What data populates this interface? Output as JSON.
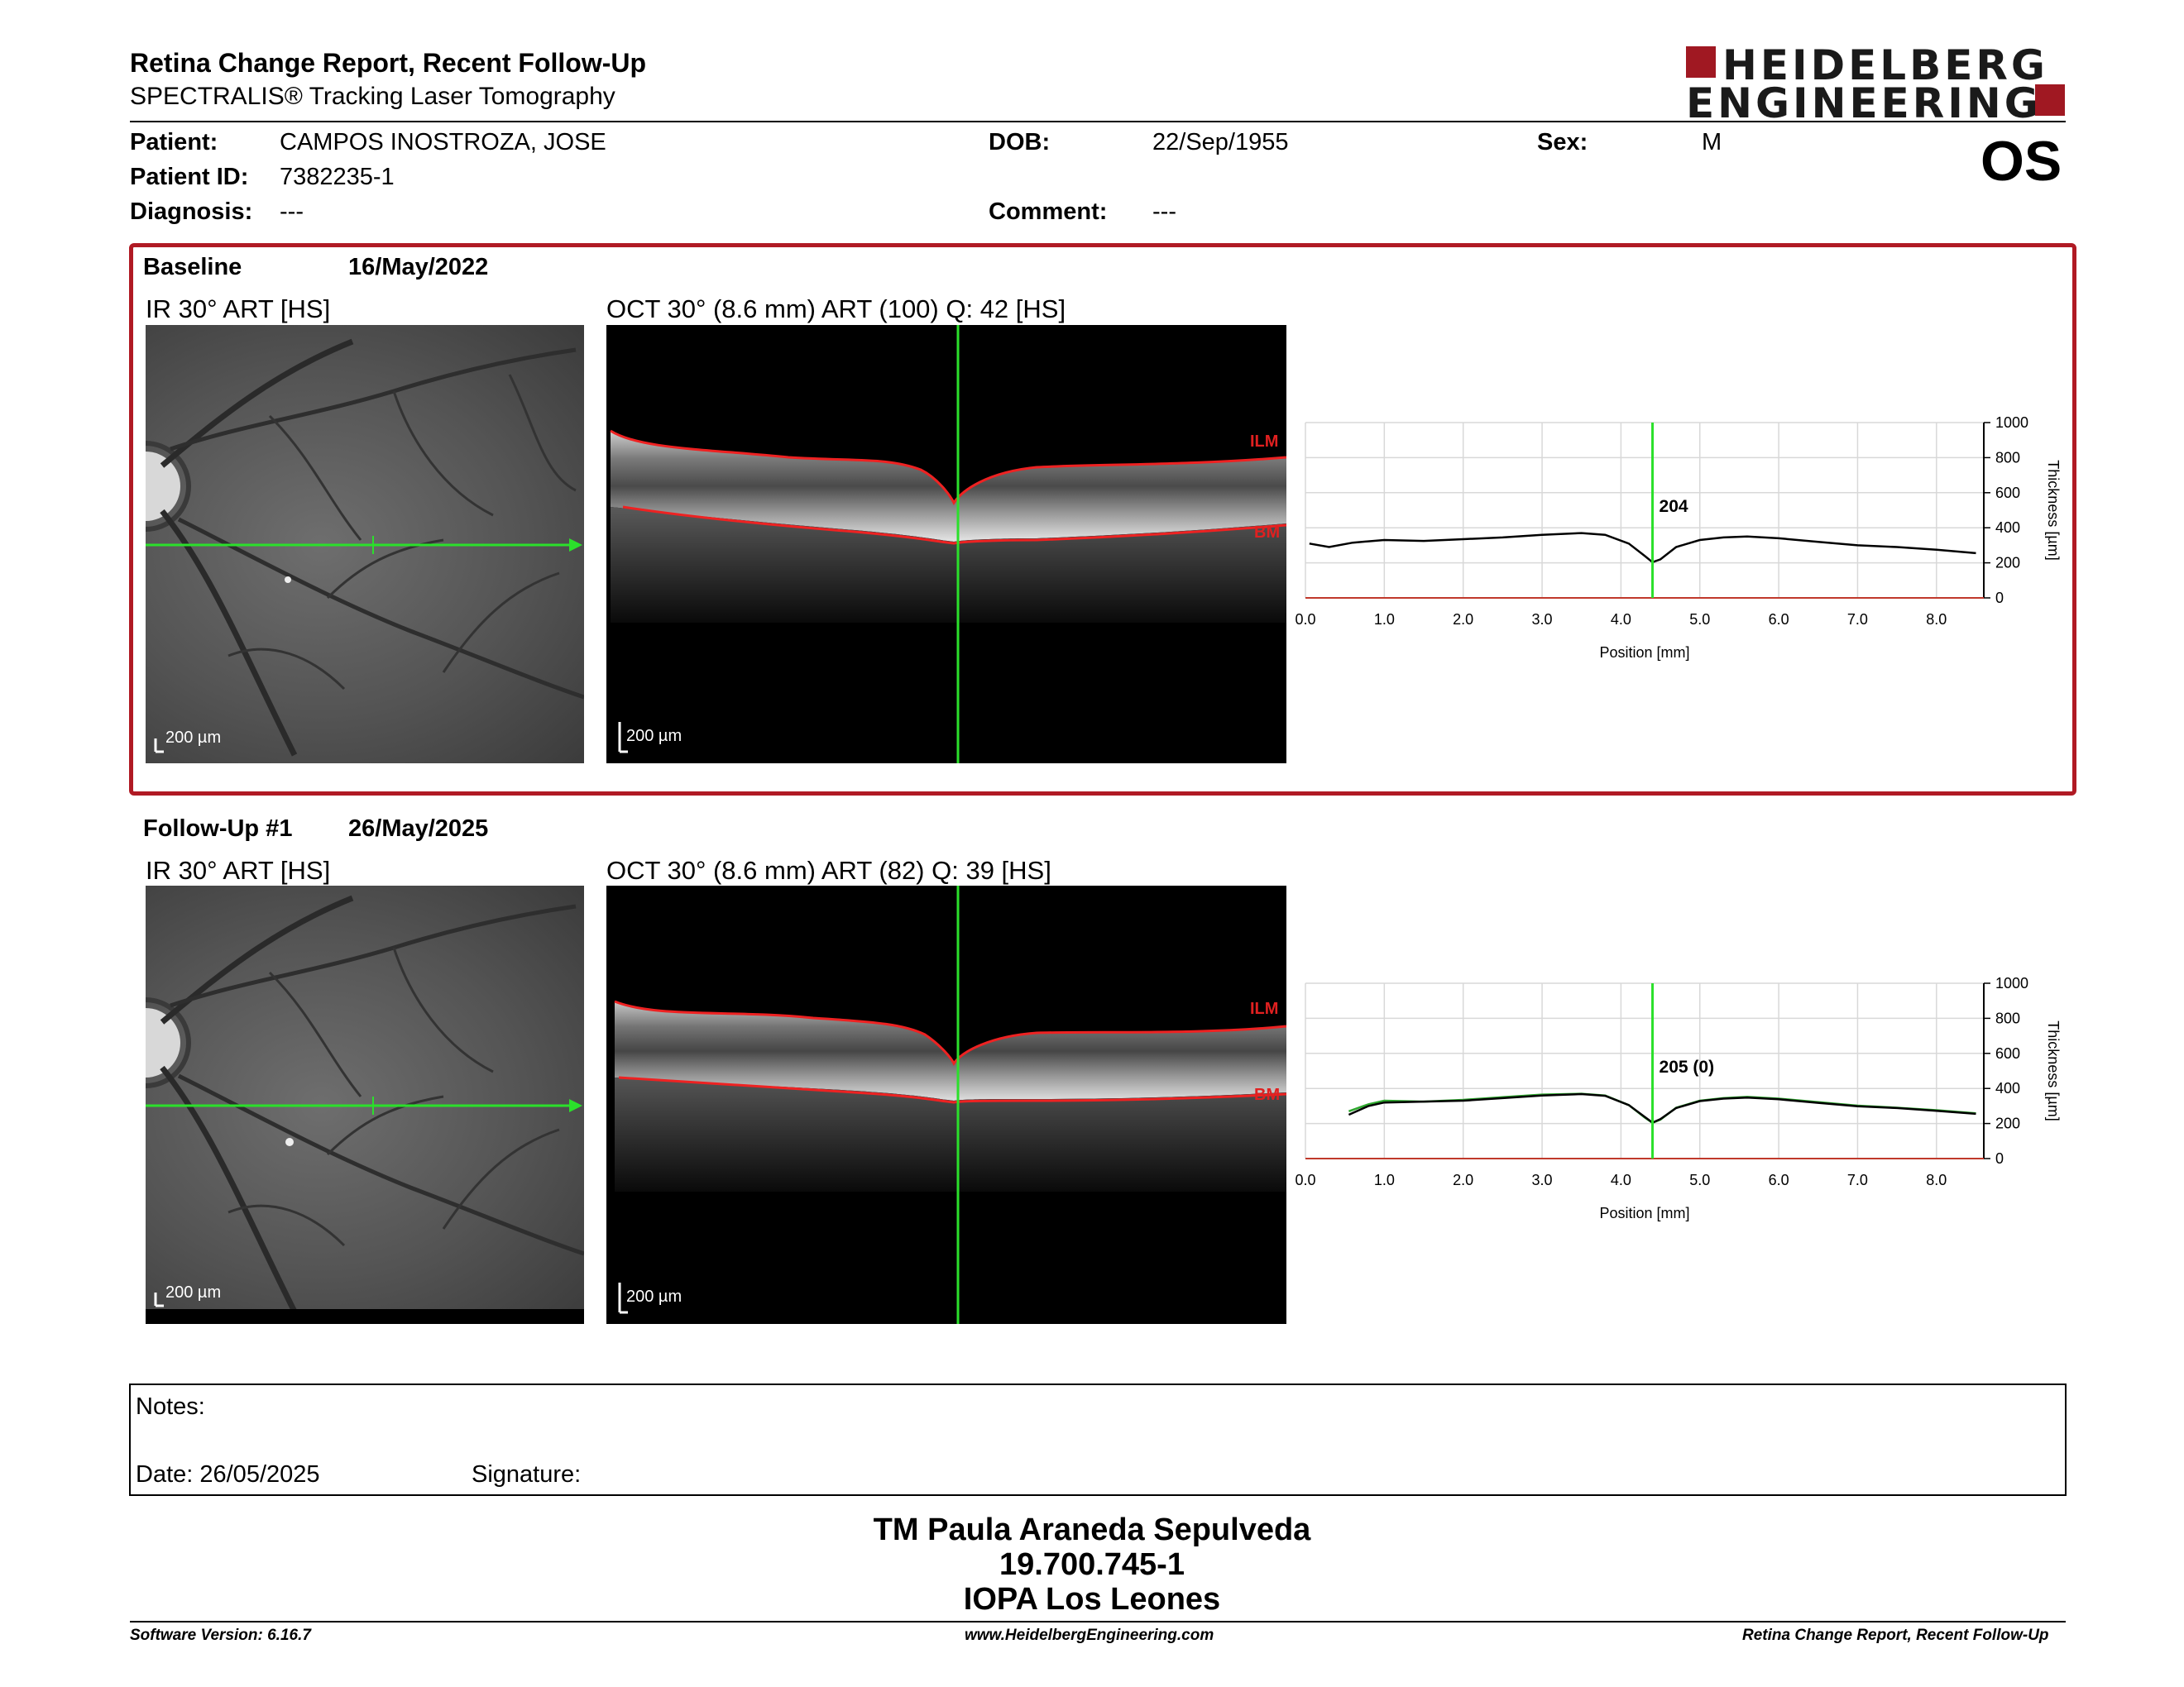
{
  "header": {
    "title": "Retina Change Report, Recent Follow-Up",
    "subtitle": "SPECTRALIS® Tracking Laser Tomography",
    "logo_line1": "HEIDELBERG",
    "logo_line2": "ENGINEERING",
    "eye": "OS"
  },
  "patient": {
    "name_label": "Patient:",
    "name": "CAMPOS INOSTROZA, JOSE",
    "id_label": "Patient ID:",
    "id": "7382235-1",
    "diagnosis_label": "Diagnosis:",
    "diagnosis": "---",
    "dob_label": "DOB:",
    "dob": "22/Sep/1955",
    "comment_label": "Comment:",
    "comment": "---",
    "sex_label": "Sex:",
    "sex": "M"
  },
  "baseline": {
    "label": "Baseline",
    "date": "16/May/2022",
    "ir_title": "IR 30° ART [HS]",
    "oct_title": "OCT 30° (8.6 mm) ART (100) Q: 42 [HS]",
    "ilm_label": "ILM",
    "bm_label": "BM",
    "scale": "200 µm",
    "value_label": "204"
  },
  "followup": {
    "label": "Follow-Up #1",
    "date": "26/May/2025",
    "ir_title": "IR 30° ART [HS]",
    "oct_title": "OCT 30° (8.6 mm) ART (82) Q: 39 [HS]",
    "ilm_label": "ILM",
    "bm_label": "BM",
    "scale": "200 µm",
    "value_label": "205 (0)"
  },
  "chart_data": [
    {
      "type": "line",
      "xlabel": "Position [mm]",
      "ylabel": "Thickness [µm]",
      "xlim": [
        0,
        8.6
      ],
      "ylim": [
        0,
        1000
      ],
      "x_ticks": [
        "0.0",
        "1.0",
        "2.0",
        "3.0",
        "4.0",
        "5.0",
        "6.0",
        "7.0",
        "8.0"
      ],
      "y_ticks": [
        "0",
        "200",
        "400",
        "600",
        "800",
        "1000"
      ],
      "marker_x": 4.4,
      "marker_label": "204",
      "series": [
        {
          "color": "#000000",
          "x": [
            0.05,
            0.3,
            0.6,
            1.0,
            1.5,
            2.0,
            2.5,
            3.0,
            3.5,
            3.8,
            4.1,
            4.3,
            4.4,
            4.5,
            4.7,
            5.0,
            5.3,
            5.6,
            6.0,
            6.5,
            7.0,
            7.5,
            8.0,
            8.5
          ],
          "y": [
            310,
            290,
            315,
            330,
            325,
            335,
            345,
            360,
            370,
            360,
            310,
            240,
            204,
            220,
            290,
            330,
            345,
            350,
            340,
            320,
            300,
            290,
            275,
            255
          ]
        }
      ]
    },
    {
      "type": "line",
      "xlabel": "Position [mm]",
      "ylabel": "Thickness [µm]",
      "xlim": [
        0,
        8.6
      ],
      "ylim": [
        0,
        1000
      ],
      "x_ticks": [
        "0.0",
        "1.0",
        "2.0",
        "3.0",
        "4.0",
        "5.0",
        "6.0",
        "7.0",
        "8.0"
      ],
      "y_ticks": [
        "0",
        "200",
        "400",
        "600",
        "800",
        "1000"
      ],
      "marker_x": 4.4,
      "marker_label": "205 (0)",
      "series": [
        {
          "color": "#2ea82e",
          "x": [
            0.55,
            0.8,
            1.0,
            1.5,
            2.0,
            2.5,
            3.0,
            3.5,
            3.8,
            4.1,
            4.3,
            4.4,
            4.5,
            4.7,
            5.0,
            5.3,
            5.6,
            6.0,
            6.5,
            7.0,
            7.5,
            8.0,
            8.5
          ],
          "y": [
            270,
            310,
            330,
            325,
            335,
            350,
            365,
            370,
            360,
            305,
            235,
            204,
            222,
            290,
            330,
            345,
            352,
            342,
            322,
            302,
            290,
            276,
            258
          ]
        },
        {
          "color": "#000000",
          "x": [
            0.55,
            0.8,
            1.0,
            1.5,
            2.0,
            2.5,
            3.0,
            3.5,
            3.8,
            4.1,
            4.3,
            4.4,
            4.5,
            4.7,
            5.0,
            5.3,
            5.6,
            6.0,
            6.5,
            7.0,
            7.5,
            8.0,
            8.5
          ],
          "y": [
            250,
            300,
            320,
            325,
            330,
            345,
            360,
            368,
            358,
            305,
            238,
            205,
            225,
            288,
            328,
            342,
            348,
            338,
            318,
            298,
            288,
            272,
            255
          ]
        }
      ]
    }
  ],
  "notes": {
    "notes_label": "Notes:",
    "date_label": "Date: 26/05/2025",
    "signature_label": "Signature:"
  },
  "signature": {
    "line1": "TM Paula Araneda Sepulveda",
    "line2": "19.700.745-1",
    "line3": "IOPA Los Leones"
  },
  "footer": {
    "software": "Software Version: 6.16.7",
    "website": "www.HeidelbergEngineering.com",
    "report": "Retina Change Report, Recent Follow-Up"
  }
}
